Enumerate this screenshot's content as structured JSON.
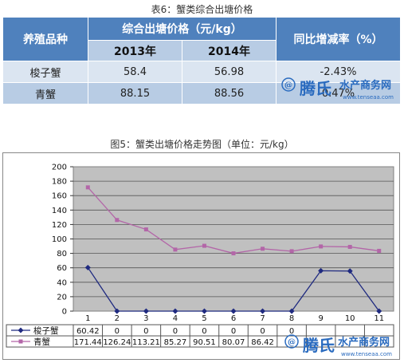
{
  "table": {
    "caption": "表6：蟹类综合出塘价格",
    "header": {
      "variety": "养殖品种",
      "price_group": "综合出塘价格（元/kg）",
      "change": "同比增减率（%）",
      "year1": "2013年",
      "year2": "2014年"
    },
    "rows": [
      {
        "name": "梭子蟹",
        "v2013": "58.4",
        "v2014": "56.98",
        "change": "-2.43%"
      },
      {
        "name": "青蟹",
        "v2013": "88.15",
        "v2014": "88.56",
        "change": "0.47%"
      }
    ]
  },
  "chart_caption": "图5：蟹类出塘价格走势图（单位：元/kg）",
  "watermark": {
    "brand": "腾氏",
    "text": "水产商务网",
    "url": "www.tenseaa.com",
    "color": "#2a6bbf"
  },
  "chart_data": {
    "type": "line",
    "title": "",
    "xlabel": "",
    "ylabel": "",
    "categories": [
      "1",
      "2",
      "3",
      "4",
      "5",
      "6",
      "7",
      "8",
      "9",
      "10",
      "11"
    ],
    "ylim": [
      0,
      200
    ],
    "ytick_step": 20,
    "grid": true,
    "legend": "data-table-below",
    "series": [
      {
        "name": "梭子蟹",
        "color": "#1f2a80",
        "marker": "diamond",
        "values": [
          60.42,
          0,
          0,
          0,
          0,
          0,
          0,
          0,
          55.9,
          55.5,
          0
        ],
        "labels": [
          "60.42",
          "0",
          "0",
          "0",
          "0",
          "0",
          "0",
          "0",
          "",
          "",
          ""
        ]
      },
      {
        "name": "青蟹",
        "color": "#b366a8",
        "marker": "square",
        "values": [
          171.44,
          126.24,
          113.21,
          85.27,
          90.51,
          80.07,
          86.42,
          83.0,
          89.6,
          89.0,
          83.5
        ],
        "labels": [
          "171.44",
          "126.24",
          "113.21",
          "85.27",
          "90.51",
          "80.07",
          "86.42",
          "",
          "",
          "",
          ""
        ]
      }
    ]
  }
}
